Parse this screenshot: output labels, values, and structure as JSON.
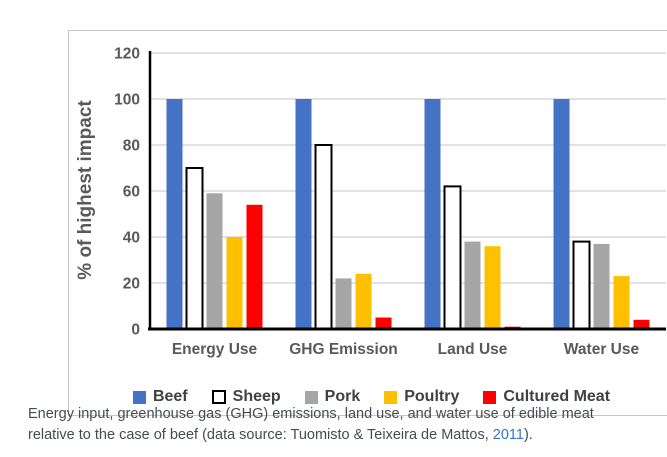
{
  "figure": {
    "caption": {
      "text_before_link": "Energy input, greenhouse gas (GHG) emissions, land use, and water use of edible meat relative to the case of beef (data source: Tuomisto & Teixeira de Mattos, ",
      "link_text": "2011",
      "text_after_link": ")."
    }
  },
  "chart_data": {
    "type": "bar",
    "title": "",
    "xlabel": "",
    "ylabel": "% of highest impact",
    "categories": [
      "Energy Use",
      "GHG Emission",
      "Land Use",
      "Water Use"
    ],
    "series": [
      {
        "name": "Beef",
        "color": "#4472C4",
        "values": [
          100,
          100,
          100,
          100
        ]
      },
      {
        "name": "Sheep",
        "color": "#FFFFFF",
        "border": "#000000",
        "values": [
          70,
          80,
          62,
          38
        ]
      },
      {
        "name": "Pork",
        "color": "#A6A6A6",
        "values": [
          59,
          22,
          38,
          37
        ]
      },
      {
        "name": "Poultry",
        "color": "#FFC000",
        "values": [
          40,
          24,
          36,
          23
        ]
      },
      {
        "name": "Cultured Meat",
        "color": "#FF0000",
        "values": [
          54,
          5,
          1,
          4
        ]
      }
    ],
    "ylim": [
      0,
      120
    ],
    "yticks": [
      0,
      20,
      40,
      60,
      80,
      100,
      120
    ],
    "grid": true,
    "legend_position": "bottom",
    "colors": {
      "axis_line": "#000000",
      "gridline": "#D9D9D9",
      "axis_text": "#595959",
      "caption_text": "#454B50",
      "link": "#2E78C6",
      "figure_border": "#C6C6C6"
    }
  }
}
